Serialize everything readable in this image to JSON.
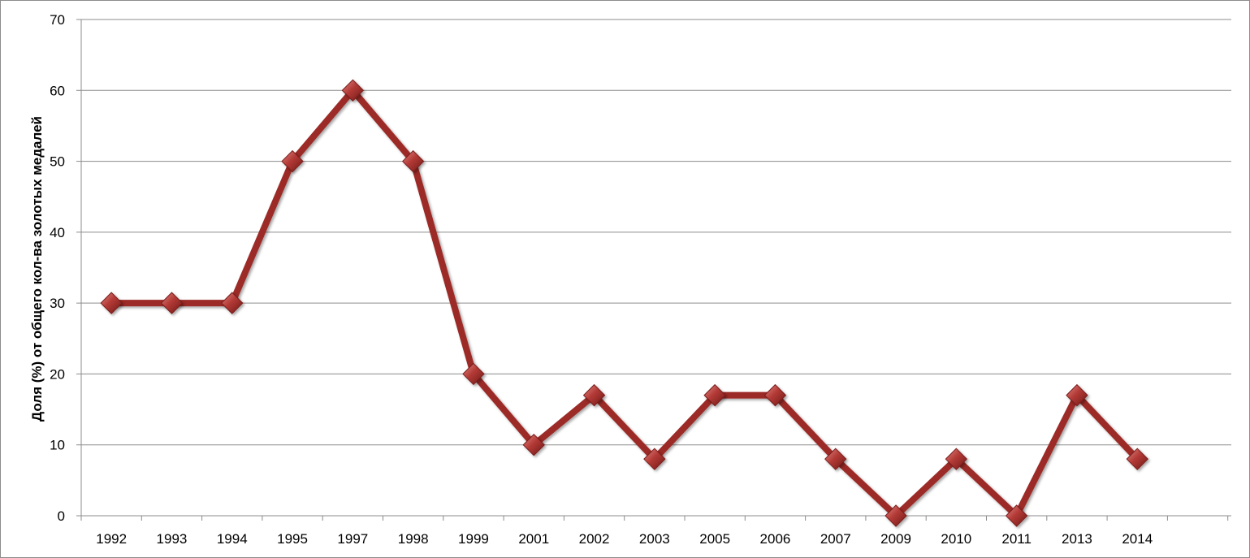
{
  "chart_data": {
    "type": "line",
    "title": "",
    "xlabel": "",
    "ylabel": "Доля (%) от  общего кол-ва золотых медалей",
    "ylim": [
      0,
      70
    ],
    "yticks": [
      0,
      10,
      20,
      30,
      40,
      50,
      60,
      70
    ],
    "grid": true,
    "legend": "none",
    "categories": [
      "1992",
      "1993",
      "1994",
      "1995",
      "1997",
      "1998",
      "1999",
      "2001",
      "2002",
      "2003",
      "2005",
      "2006",
      "2007",
      "2009",
      "2010",
      "2011",
      "2013",
      "2014"
    ],
    "series": [
      {
        "values": [
          30,
          30,
          30,
          50,
          60,
          50,
          20,
          10,
          17,
          8,
          17,
          17,
          8,
          0,
          8,
          0,
          17,
          8
        ],
        "color": "#9c2a27",
        "marker": "diamond"
      }
    ],
    "colors": {
      "line": "#9c2a27",
      "marker_light": "#d9706c",
      "marker_dark": "#7a1d1b",
      "grid": "#8c8c8c",
      "axis": "#8c8c8c"
    }
  }
}
